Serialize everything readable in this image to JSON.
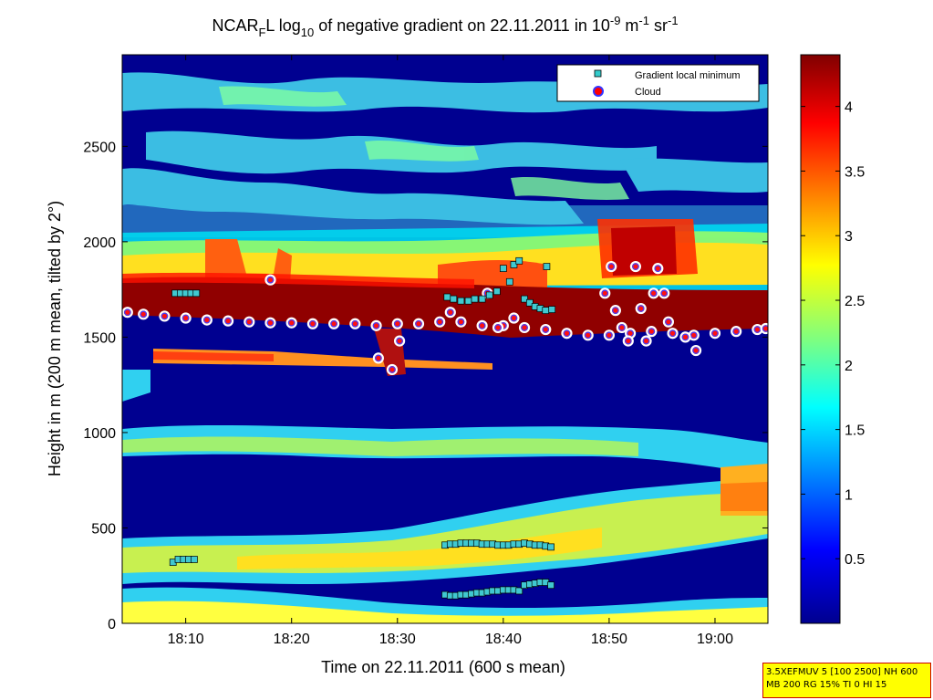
{
  "chart_data": {
    "type": "heatmap",
    "title": {
      "prefix": "NCAR",
      "prefix_sub": "F",
      "part2": "L log",
      "part2_sub": "10",
      "part3": " of negative gradient on 22.11.2011 in 10",
      "exp1": "-9",
      "part4": " m",
      "exp2": "-1",
      "part5": " sr",
      "exp3": "-1"
    },
    "xlabel": "Time on 22.11.2011 (600 s mean)",
    "ylabel": "Height in m (200 m mean, tilted by 2°)",
    "x_unit": "minutes after 18:00",
    "xlim": [
      4,
      65
    ],
    "ylim": [
      0,
      2980
    ],
    "xticks": [
      {
        "value": 10,
        "label": "18:10"
      },
      {
        "value": 20,
        "label": "18:20"
      },
      {
        "value": 30,
        "label": "18:30"
      },
      {
        "value": 40,
        "label": "18:40"
      },
      {
        "value": 50,
        "label": "18:50"
      },
      {
        "value": 60,
        "label": "19:00"
      }
    ],
    "yticks": [
      {
        "value": 0,
        "label": "0"
      },
      {
        "value": 500,
        "label": "500"
      },
      {
        "value": 1000,
        "label": "1000"
      },
      {
        "value": 1500,
        "label": "1500"
      },
      {
        "value": 2000,
        "label": "2000"
      },
      {
        "value": 2500,
        "label": "2500"
      }
    ],
    "colorbar": {
      "range": [
        0,
        4.4
      ],
      "ticks": [
        {
          "value": 0.5,
          "label": "0.5"
        },
        {
          "value": 1,
          "label": "1"
        },
        {
          "value": 1.5,
          "label": "1.5"
        },
        {
          "value": 2,
          "label": "2"
        },
        {
          "value": 2.5,
          "label": "2.5"
        },
        {
          "value": 3,
          "label": "3"
        },
        {
          "value": 3.5,
          "label": "3.5"
        },
        {
          "value": 4,
          "label": "4"
        }
      ]
    },
    "legend": {
      "placement": "top-right",
      "entries": [
        {
          "label": "Gradient local minimum",
          "marker": "square",
          "color": "#33cccc"
        },
        {
          "label": "Cloud",
          "marker": "circle",
          "color": "#ff0000"
        }
      ]
    },
    "series": [
      {
        "name": "Cloud",
        "marker": "circle",
        "points": [
          [
            4.5,
            1630
          ],
          [
            6,
            1620
          ],
          [
            8,
            1610
          ],
          [
            10,
            1600
          ],
          [
            12,
            1590
          ],
          [
            14,
            1585
          ],
          [
            16,
            1580
          ],
          [
            18,
            1575
          ],
          [
            20,
            1575
          ],
          [
            22,
            1570
          ],
          [
            24,
            1570
          ],
          [
            26,
            1570
          ],
          [
            28,
            1560
          ],
          [
            30,
            1570
          ],
          [
            32,
            1570
          ],
          [
            34,
            1580
          ],
          [
            35,
            1630
          ],
          [
            36,
            1580
          ],
          [
            38,
            1560
          ],
          [
            40,
            1560
          ],
          [
            42,
            1550
          ],
          [
            44,
            1540
          ],
          [
            46,
            1520
          ],
          [
            48,
            1510
          ],
          [
            50,
            1510
          ],
          [
            52,
            1520
          ],
          [
            54,
            1530
          ],
          [
            56,
            1520
          ],
          [
            58,
            1510
          ],
          [
            60,
            1520
          ],
          [
            62,
            1530
          ],
          [
            64,
            1540
          ],
          [
            64.8,
            1545
          ],
          [
            18,
            1800
          ],
          [
            28.2,
            1390
          ],
          [
            29.5,
            1330
          ],
          [
            30.2,
            1480
          ],
          [
            38.5,
            1730
          ],
          [
            39.5,
            1550
          ],
          [
            41,
            1600
          ],
          [
            49.6,
            1730
          ],
          [
            50.2,
            1870
          ],
          [
            50.6,
            1640
          ],
          [
            51.2,
            1550
          ],
          [
            51.8,
            1480
          ],
          [
            52.5,
            1870
          ],
          [
            53,
            1650
          ],
          [
            53.5,
            1480
          ],
          [
            54.2,
            1730
          ],
          [
            54.6,
            1860
          ],
          [
            55.2,
            1730
          ],
          [
            55.6,
            1580
          ],
          [
            57.2,
            1500
          ],
          [
            58.2,
            1430
          ]
        ]
      },
      {
        "name": "Gradient local minimum",
        "marker": "square",
        "points": [
          [
            9,
            1730
          ],
          [
            9.5,
            1730
          ],
          [
            10,
            1730
          ],
          [
            10.5,
            1730
          ],
          [
            11,
            1730
          ],
          [
            8.8,
            320
          ],
          [
            9.3,
            335
          ],
          [
            9.8,
            335
          ],
          [
            10.3,
            335
          ],
          [
            10.8,
            335
          ],
          [
            34.5,
            410
          ],
          [
            35,
            415
          ],
          [
            35.5,
            415
          ],
          [
            36,
            420
          ],
          [
            36.5,
            420
          ],
          [
            37,
            420
          ],
          [
            37.5,
            420
          ],
          [
            38,
            415
          ],
          [
            38.5,
            415
          ],
          [
            39,
            415
          ],
          [
            39.5,
            410
          ],
          [
            40,
            410
          ],
          [
            40.5,
            410
          ],
          [
            41,
            415
          ],
          [
            41.5,
            415
          ],
          [
            42,
            420
          ],
          [
            42.5,
            415
          ],
          [
            43,
            410
          ],
          [
            43.5,
            410
          ],
          [
            44,
            405
          ],
          [
            44.5,
            400
          ],
          [
            34.5,
            150
          ],
          [
            35,
            145
          ],
          [
            35.5,
            145
          ],
          [
            36,
            150
          ],
          [
            36.5,
            150
          ],
          [
            37,
            155
          ],
          [
            37.5,
            160
          ],
          [
            38,
            160
          ],
          [
            38.5,
            165
          ],
          [
            39,
            170
          ],
          [
            39.5,
            170
          ],
          [
            40,
            175
          ],
          [
            40.5,
            175
          ],
          [
            41,
            175
          ],
          [
            41.5,
            170
          ],
          [
            42,
            200
          ],
          [
            42.5,
            205
          ],
          [
            43,
            210
          ],
          [
            43.5,
            215
          ],
          [
            44,
            215
          ],
          [
            44.5,
            200
          ],
          [
            34.7,
            1710
          ],
          [
            35.3,
            1700
          ],
          [
            36,
            1690
          ],
          [
            36.7,
            1690
          ],
          [
            37.3,
            1700
          ],
          [
            38,
            1700
          ],
          [
            38.7,
            1720
          ],
          [
            39.4,
            1740
          ],
          [
            40,
            1860
          ],
          [
            40.6,
            1790
          ],
          [
            41,
            1880
          ],
          [
            41.5,
            1900
          ],
          [
            42,
            1700
          ],
          [
            42.5,
            1680
          ],
          [
            43,
            1660
          ],
          [
            43.5,
            1650
          ],
          [
            44,
            1640
          ],
          [
            44.6,
            1645
          ],
          [
            44.1,
            1870
          ]
        ]
      }
    ]
  },
  "info_box": {
    "line1": "3.5XEFMUV 5 [100 2500] NH 600",
    "line2": "MB 200 RG 15% TI 0 HI 15"
  }
}
